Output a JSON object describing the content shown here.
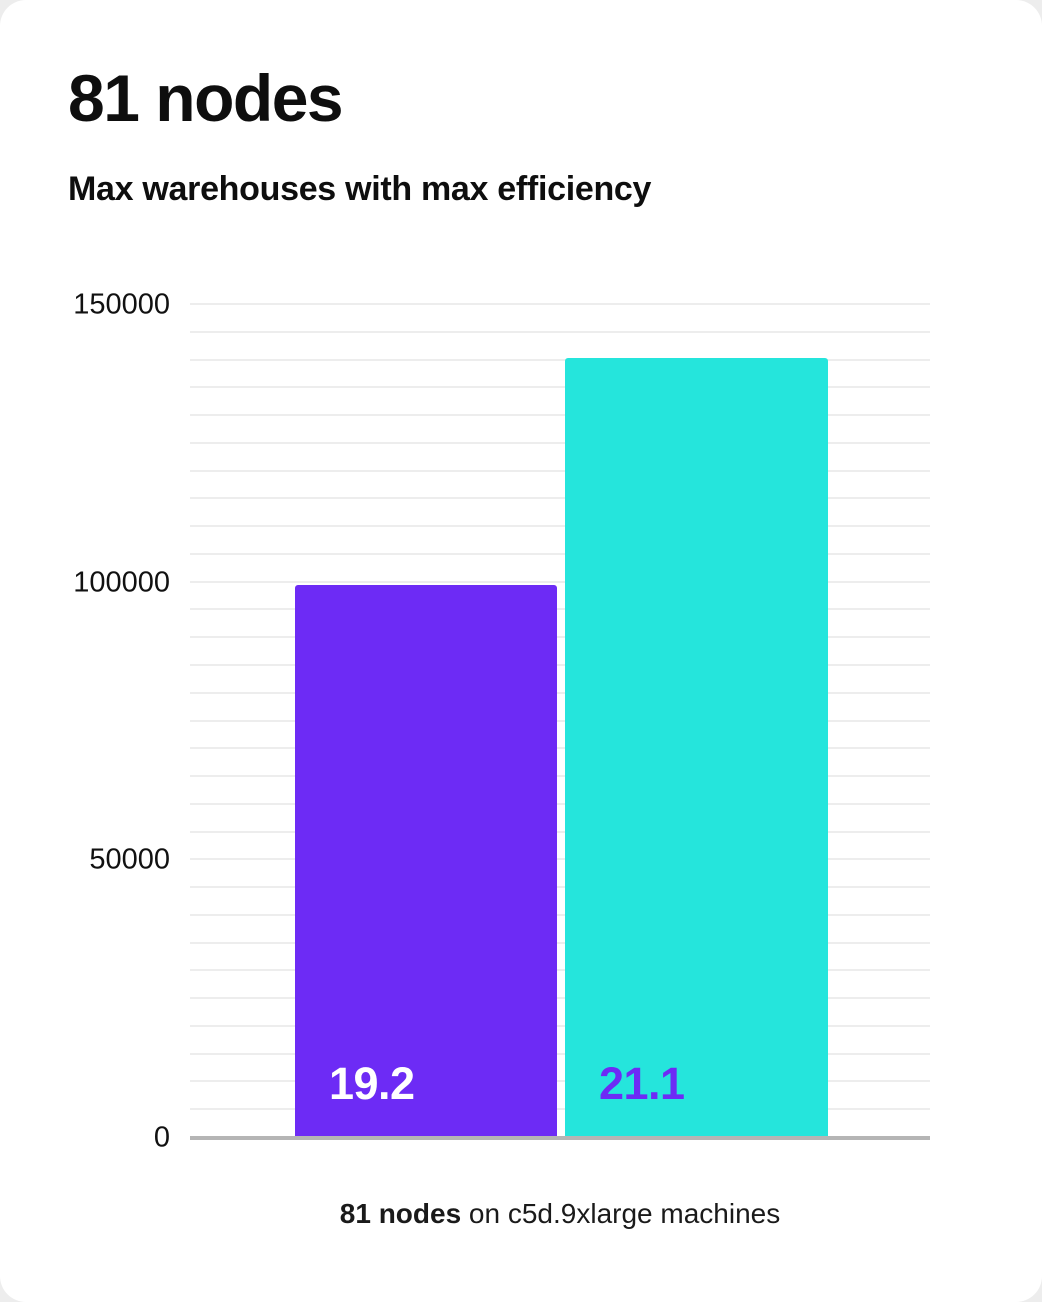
{
  "header": {
    "title": "81 nodes",
    "subtitle": "Max warehouses with max efficiency"
  },
  "chart_data": {
    "type": "bar",
    "title": "81 nodes",
    "subtitle": "Max warehouses with max efficiency",
    "categories": [
      "19.2",
      "21.1"
    ],
    "series": [
      {
        "name": "19.2",
        "value": 99500,
        "bar_color": "#6D2BF5",
        "label_color": "#FFFFFF"
      },
      {
        "name": "21.1",
        "value": 140500,
        "bar_color": "#25E5DC",
        "label_color": "#6D2BF5"
      }
    ],
    "ylim": [
      0,
      150000
    ],
    "y_ticks": [
      0,
      50000,
      100000,
      150000
    ],
    "grid_step": 5000,
    "grid": true,
    "legend": "none",
    "xlabel": "",
    "ylabel": "",
    "caption": {
      "bold": "81 nodes",
      "rest": " on c5d.9xlarge machines"
    }
  }
}
